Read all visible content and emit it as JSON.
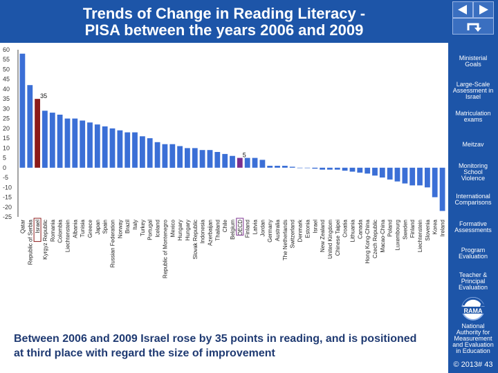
{
  "header": {
    "title_line1": "Trends of Change in Reading Literacy -",
    "title_line2": "PISA between the years 2006 and 2009"
  },
  "nav": {
    "prev_icon": "triangle-left-icon",
    "next_icon": "triangle-right-icon",
    "return_icon": "return-arrow-icon"
  },
  "sidebar": {
    "items": [
      "Ministerial Goals",
      "Large-Scale Assessment in Israel",
      "Matriculation exams",
      "Meitzav",
      "Monitoring School Violence",
      "International Comparisons",
      "Formative Assessments",
      "Program Evaluation",
      "Teacher & Principal Evaluation"
    ],
    "logo_text": "RAMA",
    "org_name": "National Authority for Measurement and Evaluation in Education"
  },
  "footer": {
    "note": "Between 2006 and 2009 Israel rose by 35 points in reading, and is positioned at third place with regard the size of improvement",
    "copyright": "© 2013# 43"
  },
  "colors": {
    "header_bg": "#1d55a8",
    "bar_default": "#3b6fd6",
    "bar_israel": "#8b1a1a",
    "bar_oecd": "#7a2f8e",
    "note_text": "#1f3a72"
  },
  "chart_data": {
    "type": "bar",
    "ylim": [
      -25,
      60
    ],
    "yticks": [
      60,
      55,
      50,
      45,
      40,
      35,
      30,
      25,
      20,
      15,
      10,
      5,
      0,
      -5,
      -10,
      -15,
      -20,
      -25
    ],
    "categories": [
      "Qatar",
      "Republic of Serbia",
      "Israel",
      "Kyrgyz Republic",
      "Romania",
      "Colombia",
      "Liechtenstein",
      "Albania",
      "Tunisia",
      "Greece",
      "Japan",
      "Spain",
      "Russian Federation",
      "Norway",
      "Brazil",
      "Italy",
      "Turkey",
      "Portugal",
      "Iceland",
      "Republic of Montenegro",
      "Mexico",
      "Hungary",
      "Hungary",
      "Slovak Republic",
      "Indonesia",
      "Azerbaijan",
      "Thailand",
      "Chile",
      "Belgium",
      "OECD",
      "Finland",
      "Latvia",
      "Jordan",
      "Germany",
      "Australia",
      "The Netherlands",
      "Switzerland",
      "Denmark",
      "Estonia",
      "Israel",
      "New Zealand",
      "United Kingdom",
      "Chinese Taipei",
      "Croatia",
      "Lithuania",
      "Canada",
      "Hong Kong-China",
      "Czech Republic",
      "Macao-China",
      "Poland",
      "Luxembourg",
      "Sweden",
      "Finland",
      "Liechtenstein",
      "Slovenia",
      "Korea",
      "Ireland"
    ],
    "values": [
      58,
      42,
      35,
      29,
      28,
      27,
      25,
      25,
      24,
      23,
      22,
      21,
      20,
      19,
      18,
      18,
      16,
      15,
      13,
      12,
      12,
      11,
      10,
      10,
      9,
      9,
      8,
      7,
      6,
      5,
      5,
      5,
      4,
      1,
      1,
      1,
      0.5,
      0,
      0,
      -0.5,
      -1,
      -1,
      -1,
      -1.5,
      -2,
      -2.5,
      -3,
      -4,
      -5,
      -6,
      -7,
      -8,
      -9,
      -9,
      -10,
      -15,
      -22
    ],
    "labels": [
      {
        "category_index": 2,
        "text": "35"
      },
      {
        "category_index": 29,
        "text": "5"
      }
    ],
    "highlights": [
      {
        "category_index": 2,
        "kind": "israel"
      },
      {
        "category_index": 29,
        "kind": "oecd"
      }
    ],
    "grid": false
  }
}
